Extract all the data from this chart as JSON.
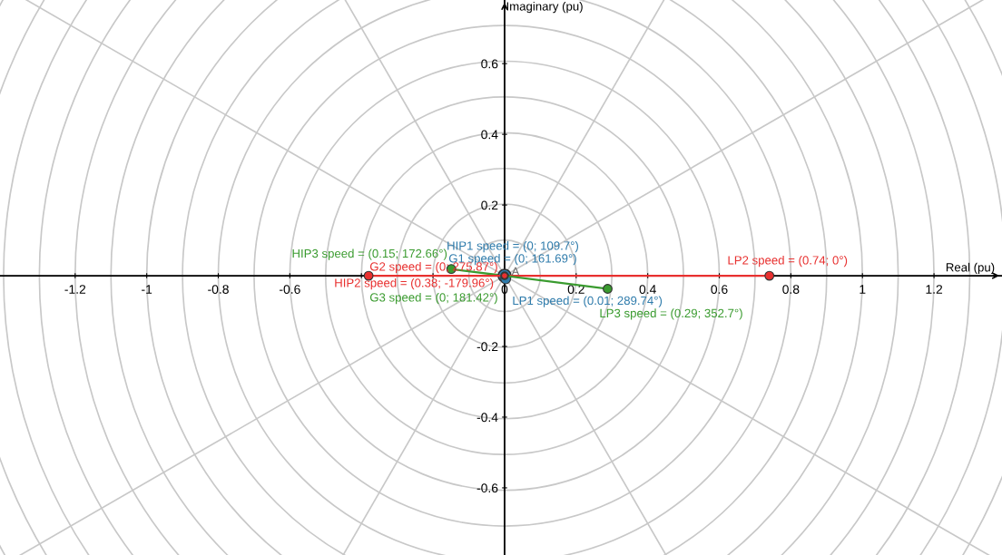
{
  "chart_data": {
    "type": "scatter",
    "xlabel": "Real (pu)",
    "ylabel": "Imaginary (pu)",
    "xlim": [
      -1.41,
      1.39
    ],
    "ylim": [
      -0.79,
      0.78
    ],
    "xticks": [
      -1.2,
      -1,
      -0.8,
      -0.6,
      {
        "value": -0.4,
        "label": null
      },
      {
        "value": -0.2,
        "label": null
      },
      0,
      0.2,
      0.4,
      0.6,
      0.8,
      1,
      1.2
    ],
    "yticks": [
      -0.6,
      -0.4,
      -0.2,
      {
        "value": 0,
        "label": null
      },
      0.2,
      0.4,
      0.6
    ],
    "grid": true,
    "marker": "circle",
    "series": [
      {
        "type": "line",
        "color": "#3a9b2f",
        "x": [
          0,
          -0.149
        ],
        "values": [
          0,
          0.019
        ],
        "value_labels": [
          null,
          "HIP3 speed = (0.15; 172.66°)"
        ]
      },
      {
        "color": "#2e7bab",
        "x": [
          0
        ],
        "values": [
          0
        ],
        "value_labels": [
          "HIP1 speed = (0; 109.7°)"
        ]
      },
      {
        "color": "#2e7bab",
        "x": [
          0
        ],
        "values": [
          0
        ],
        "value_labels": [
          "G1 speed = (0; 161.69°)"
        ]
      },
      {
        "type": "line",
        "color": "#e8302f",
        "x": [
          0,
          0.74
        ],
        "values": [
          0,
          0
        ],
        "value_labels": [
          null,
          "LP2 speed = (0.74; 0°)"
        ]
      },
      {
        "type": "line",
        "color": "#e8302f",
        "x": [
          0,
          -0.38
        ],
        "values": [
          0,
          0
        ],
        "value_labels": [
          null,
          "HIP2 speed = (0.38; -179.96°)"
        ]
      },
      {
        "color": "#2e7bab",
        "x": [
          0.003
        ],
        "values": [
          -0.009
        ],
        "value_labels": [
          "LP1 speed = (0.01; 289.74°)"
        ]
      },
      {
        "type": "line",
        "color": "#3a9b2f",
        "x": [
          0,
          0.288
        ],
        "values": [
          0,
          -0.037
        ],
        "value_labels": [
          null,
          "LP3 speed = (0.29; 352.7°)"
        ]
      },
      {
        "color": "#3a9b2f",
        "x": [
          0
        ],
        "values": [
          0
        ],
        "value_labels": [
          "G3 speed = (0; 181.42°)"
        ]
      },
      {
        "color": "#e8302f",
        "x": [
          0
        ],
        "values": [
          0
        ],
        "value_labels": [
          "G2 speed = (0; 275.87°)"
        ]
      }
    ],
    "annotations": [
      "A"
    ]
  }
}
